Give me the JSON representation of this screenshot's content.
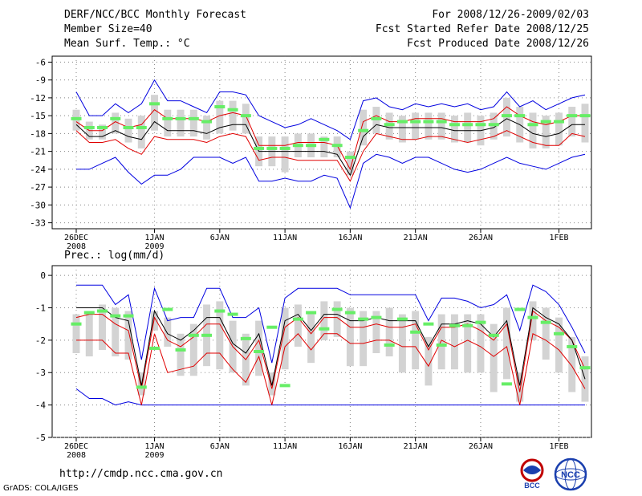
{
  "header": {
    "title": "DERF/NCC/BCC Monthly Forecast",
    "member_size": "Member Size=40",
    "variable": "Mean Surf. Temp.: °C",
    "period": "For 2008/12/26-2009/02/03",
    "fcst_started": "Fcst Started Refer Date 2008/12/25",
    "fcst_produced": "Fcst Produced Date 2008/12/26"
  },
  "footer": {
    "url": "http://cmdp.ncc.cma.gov.cn",
    "grads": "GrADS: COLA/IGES"
  },
  "logos": [
    {
      "name": "bcc-logo",
      "text": "BCC"
    },
    {
      "name": "ncc-logo",
      "text": "NCC"
    }
  ],
  "colors": {
    "envelope": "#0000e0",
    "spread": "#e00000",
    "mean": "#000000",
    "median": "#66ee66",
    "box": "#d3d3d3"
  },
  "chart_data": [
    {
      "type": "box",
      "title": "Mean Surf. Temp.: °C",
      "ylim": [
        -34,
        -5
      ],
      "yticks": [
        -33,
        -30,
        -27,
        -24,
        -21,
        -18,
        -15,
        -12,
        -9,
        -6
      ],
      "day_count": 40,
      "xticks": [
        {
          "day": 0,
          "label": "26DEC",
          "sub": "2008"
        },
        {
          "day": 6,
          "label": "1JAN",
          "sub": "2009"
        },
        {
          "day": 11,
          "label": "6JAN",
          "sub": ""
        },
        {
          "day": 16,
          "label": "11JAN",
          "sub": ""
        },
        {
          "day": 21,
          "label": "16JAN",
          "sub": ""
        },
        {
          "day": 26,
          "label": "21JAN",
          "sub": ""
        },
        {
          "day": 31,
          "label": "26JAN",
          "sub": ""
        },
        {
          "day": 37,
          "label": "1FEB",
          "sub": ""
        }
      ],
      "series": {
        "max": [
          -11.0,
          -15.0,
          -15.0,
          -13.0,
          -14.5,
          -13.0,
          -9.0,
          -12.5,
          -12.5,
          -13.5,
          -14.5,
          -11.0,
          -11.0,
          -11.5,
          -15.0,
          -16.0,
          -17.0,
          -16.5,
          -15.5,
          -16.5,
          -17.5,
          -19.0,
          -12.5,
          -12.0,
          -13.5,
          -14.0,
          -13.0,
          -13.5,
          -13.0,
          -13.5,
          -13.0,
          -14.0,
          -13.5,
          -11.0,
          -13.5,
          -12.5,
          -14.0,
          -13.0,
          -12.0,
          -11.5
        ],
        "p75": [
          -16.0,
          -17.5,
          -17.5,
          -16.0,
          -17.0,
          -16.5,
          -14.0,
          -15.5,
          -15.5,
          -15.5,
          -16.0,
          -15.0,
          -14.5,
          -15.0,
          -20.0,
          -20.0,
          -20.0,
          -19.5,
          -19.5,
          -19.5,
          -20.0,
          -24.0,
          -16.0,
          -15.0,
          -16.0,
          -16.0,
          -15.5,
          -15.5,
          -15.5,
          -16.0,
          -16.0,
          -16.0,
          -15.5,
          -13.5,
          -15.0,
          -16.0,
          -16.5,
          -16.0,
          -15.0,
          -15.0
        ],
        "mean": [
          -16.5,
          -18.5,
          -18.5,
          -17.5,
          -18.5,
          -19.0,
          -16.0,
          -17.5,
          -17.5,
          -17.5,
          -18.0,
          -17.0,
          -16.5,
          -16.5,
          -21.0,
          -21.0,
          -21.0,
          -21.0,
          -21.0,
          -21.0,
          -21.5,
          -25.0,
          -18.5,
          -16.5,
          -17.0,
          -17.0,
          -17.0,
          -17.0,
          -17.0,
          -17.5,
          -17.5,
          -17.5,
          -17.0,
          -15.5,
          -16.5,
          -18.0,
          -18.5,
          -18.0,
          -16.5,
          -16.5
        ],
        "p25": [
          -17.5,
          -19.5,
          -19.5,
          -19.0,
          -20.5,
          -21.5,
          -18.5,
          -19.0,
          -19.0,
          -19.0,
          -19.5,
          -18.5,
          -18.0,
          -18.5,
          -22.5,
          -22.0,
          -22.0,
          -22.5,
          -22.5,
          -22.5,
          -22.5,
          -26.0,
          -21.0,
          -18.0,
          -18.5,
          -19.0,
          -19.0,
          -18.5,
          -18.5,
          -19.0,
          -19.5,
          -19.0,
          -18.5,
          -17.5,
          -18.5,
          -19.5,
          -20.0,
          -20.0,
          -18.0,
          -18.5
        ],
        "min": [
          -24.0,
          -24.0,
          -23.0,
          -22.0,
          -24.5,
          -26.5,
          -25.0,
          -25.0,
          -24.0,
          -22.0,
          -22.0,
          -22.0,
          -23.0,
          -22.0,
          -26.0,
          -26.0,
          -25.5,
          -26.0,
          -26.0,
          -25.0,
          -25.5,
          -30.5,
          -23.0,
          -21.5,
          -22.0,
          -23.0,
          -22.0,
          -22.0,
          -23.0,
          -24.0,
          -24.5,
          -24.0,
          -23.0,
          -22.0,
          -23.0,
          -23.5,
          -24.0,
          -23.0,
          -22.0,
          -21.5
        ],
        "median": [
          -15.5,
          -17.0,
          -17.0,
          -15.5,
          -17.0,
          -17.0,
          -13.0,
          -15.5,
          -15.5,
          -15.5,
          -16.0,
          -13.5,
          -14.0,
          -15.0,
          -20.5,
          -20.5,
          -20.5,
          -20.0,
          -20.0,
          -19.0,
          -20.0,
          -22.0,
          -17.5,
          -15.5,
          -16.5,
          -16.0,
          -16.0,
          -16.0,
          -16.0,
          -16.5,
          -16.5,
          -16.5,
          -16.5,
          -15.0,
          -15.0,
          -16.5,
          -16.0,
          -16.0,
          -15.0,
          -15.0
        ],
        "box_top": [
          -14.0,
          -16.0,
          -16.5,
          -14.5,
          -15.5,
          -15.0,
          -11.5,
          -14.0,
          -14.0,
          -14.0,
          -15.0,
          -12.5,
          -12.5,
          -13.0,
          -18.5,
          -18.5,
          -18.5,
          -18.0,
          -18.0,
          -18.5,
          -18.5,
          -21.0,
          -14.0,
          -13.5,
          -14.5,
          -15.0,
          -14.5,
          -14.5,
          -14.5,
          -15.0,
          -14.5,
          -15.0,
          -14.5,
          -12.0,
          -13.5,
          -14.5,
          -15.0,
          -14.5,
          -13.5,
          -13.0
        ],
        "box_bottom": [
          -17.5,
          -19.0,
          -19.0,
          -18.0,
          -19.5,
          -20.5,
          -17.5,
          -18.5,
          -18.5,
          -18.5,
          -19.0,
          -18.0,
          -17.5,
          -18.0,
          -23.5,
          -23.5,
          -24.5,
          -22.0,
          -22.0,
          -22.0,
          -22.0,
          -25.0,
          -20.0,
          -18.0,
          -19.0,
          -19.5,
          -19.0,
          -19.0,
          -19.0,
          -19.5,
          -19.5,
          -20.0,
          -19.0,
          -18.5,
          -19.5,
          -20.5,
          -20.5,
          -20.0,
          -18.5,
          -19.5
        ]
      }
    },
    {
      "type": "box",
      "title": "Prec.: log(mm/d)",
      "ylim": [
        -5,
        0.3
      ],
      "yticks": [
        -5,
        -4,
        -3,
        -2,
        -1,
        0
      ],
      "day_count": 40,
      "xticks": [
        {
          "day": 0,
          "label": "26DEC",
          "sub": "2008"
        },
        {
          "day": 6,
          "label": "1JAN",
          "sub": "2009"
        },
        {
          "day": 11,
          "label": "6JAN",
          "sub": ""
        },
        {
          "day": 16,
          "label": "11JAN",
          "sub": ""
        },
        {
          "day": 21,
          "label": "16JAN",
          "sub": ""
        },
        {
          "day": 26,
          "label": "21JAN",
          "sub": ""
        },
        {
          "day": 31,
          "label": "26JAN",
          "sub": ""
        },
        {
          "day": 37,
          "label": "1FEB",
          "sub": ""
        }
      ],
      "series": {
        "max": [
          -0.3,
          -0.3,
          -0.3,
          -0.9,
          -0.6,
          -2.6,
          -0.4,
          -1.4,
          -1.3,
          -1.3,
          -0.4,
          -0.4,
          -1.3,
          -1.3,
          -1.0,
          -2.7,
          -0.7,
          -0.4,
          -0.4,
          -0.4,
          -0.4,
          -0.6,
          -0.6,
          -0.6,
          -0.6,
          -0.6,
          -0.6,
          -1.4,
          -0.7,
          -0.7,
          -0.8,
          -1.0,
          -0.9,
          -0.6,
          -1.7,
          -0.3,
          -0.5,
          -0.9,
          -1.6,
          -2.4
        ],
        "p75": [
          -1.3,
          -1.2,
          -1.2,
          -1.5,
          -1.7,
          -3.5,
          -1.3,
          -2.0,
          -2.2,
          -1.9,
          -1.5,
          -1.5,
          -2.2,
          -2.6,
          -2.0,
          -3.5,
          -1.6,
          -1.3,
          -1.8,
          -1.3,
          -1.3,
          -1.6,
          -1.6,
          -1.5,
          -1.6,
          -1.6,
          -1.5,
          -2.3,
          -1.6,
          -1.6,
          -1.5,
          -1.7,
          -2.0,
          -1.5,
          -3.6,
          -1.1,
          -1.4,
          -1.6,
          -2.0,
          -2.9
        ],
        "mean": [
          -1.0,
          -1.0,
          -1.0,
          -1.3,
          -1.4,
          -3.4,
          -1.1,
          -1.8,
          -2.0,
          -1.7,
          -1.3,
          -1.3,
          -2.1,
          -2.4,
          -1.8,
          -3.4,
          -1.4,
          -1.2,
          -1.7,
          -1.2,
          -1.2,
          -1.4,
          -1.4,
          -1.3,
          -1.4,
          -1.4,
          -1.4,
          -2.2,
          -1.5,
          -1.5,
          -1.4,
          -1.5,
          -1.9,
          -1.4,
          -3.4,
          -1.0,
          -1.3,
          -1.5,
          -2.0,
          -3.2
        ],
        "p25": [
          -2.0,
          -2.0,
          -2.0,
          -2.4,
          -2.4,
          -4.0,
          -1.8,
          -3.0,
          -2.9,
          -2.8,
          -2.4,
          -2.4,
          -2.9,
          -3.3,
          -2.5,
          -4.0,
          -2.2,
          -1.8,
          -2.3,
          -1.8,
          -1.8,
          -2.1,
          -2.1,
          -2.0,
          -2.0,
          -2.2,
          -2.2,
          -2.8,
          -2.0,
          -2.2,
          -2.0,
          -2.2,
          -2.5,
          -2.2,
          -4.0,
          -1.8,
          -2.0,
          -2.3,
          -2.8,
          -3.5
        ],
        "min": [
          -3.5,
          -3.8,
          -3.8,
          -4.0,
          -3.9,
          -4.0,
          -4.0,
          -4.0,
          -4.0,
          -4.0,
          -4.0,
          -4.0,
          -4.0,
          -4.0,
          -4.0,
          -4.0,
          -4.0,
          -4.0,
          -4.0,
          -4.0,
          -4.0,
          -4.0,
          -4.0,
          -4.0,
          -4.0,
          -4.0,
          -4.0,
          -4.0,
          -4.0,
          -4.0,
          -4.0,
          -4.0,
          -4.0,
          -4.0,
          -4.0,
          -4.0,
          -4.0,
          -4.0,
          -4.0,
          -4.0
        ],
        "median": [
          -1.5,
          -1.15,
          -1.1,
          -1.25,
          -1.25,
          -3.45,
          -2.25,
          -1.05,
          -2.3,
          -1.85,
          -1.85,
          -1.1,
          -1.2,
          -1.95,
          -2.35,
          -1.6,
          -3.4,
          -1.35,
          -1.15,
          -1.65,
          -1.05,
          -1.15,
          -1.35,
          -1.3,
          -2.15,
          -1.35,
          -1.75,
          -1.5,
          -2.15,
          -1.55,
          -1.55,
          -1.45,
          -1.85,
          -3.35,
          -1.05,
          -1.3,
          -1.45,
          -1.8,
          -2.2,
          -2.85
        ],
        "box_top": [
          -1.2,
          -1.1,
          -0.9,
          -1.0,
          -1.1,
          -3.0,
          -1.1,
          -1.3,
          -1.8,
          -1.5,
          -0.9,
          -0.8,
          -1.4,
          -1.8,
          -1.4,
          -3.0,
          -1.0,
          -0.9,
          -1.2,
          -0.8,
          -0.8,
          -1.0,
          -1.1,
          -1.1,
          -1.0,
          -1.2,
          -1.1,
          -1.9,
          -1.2,
          -1.2,
          -1.2,
          -1.2,
          -1.5,
          -1.0,
          -3.0,
          -0.8,
          -1.0,
          -1.3,
          -1.9,
          -2.5
        ],
        "box_bottom": [
          -2.4,
          -2.5,
          -2.3,
          -2.5,
          -2.6,
          -3.7,
          -1.7,
          -2.2,
          -3.1,
          -3.1,
          -2.8,
          -2.9,
          -3.0,
          -3.4,
          -3.1,
          -3.7,
          -2.9,
          -2.2,
          -2.7,
          -2.0,
          -1.9,
          -2.8,
          -2.8,
          -2.4,
          -2.5,
          -3.0,
          -2.9,
          -3.4,
          -2.9,
          -2.9,
          -3.0,
          -3.0,
          -3.6,
          -3.2,
          -3.9,
          -2.0,
          -2.6,
          -3.0,
          -3.6,
          -3.9
        ]
      }
    }
  ]
}
